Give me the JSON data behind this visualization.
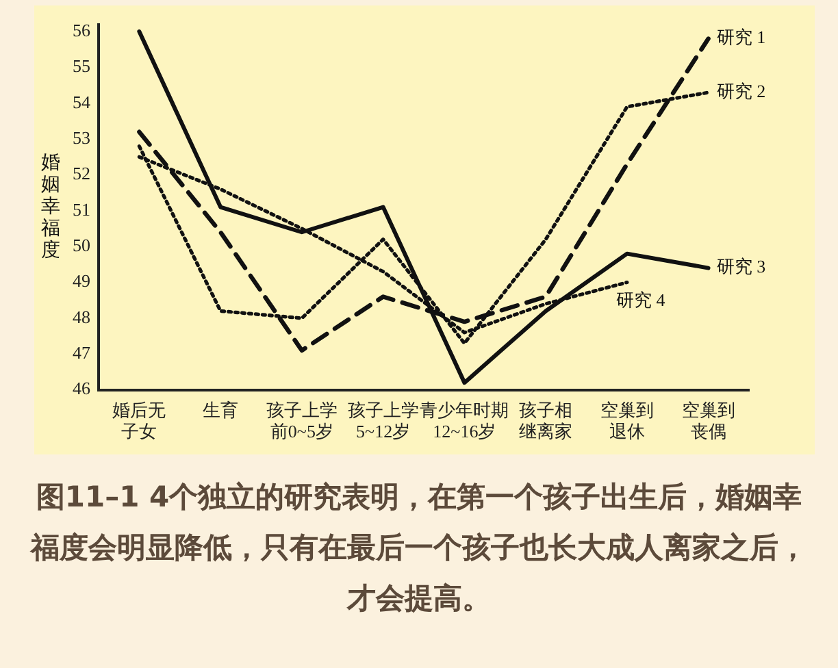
{
  "chart_data": {
    "type": "line",
    "ylabel": "婚姻幸福度",
    "categories": [
      "婚后无子女",
      "生育",
      "孩子上学前0~5岁",
      "孩子上学5~12岁",
      "青少年时期12~16岁",
      "孩子相继离家",
      "空巢到退休",
      "空巢到丧偶"
    ],
    "series": [
      {
        "name": "研究 1",
        "color": "#111111",
        "line_style": "dashed",
        "values": [
          53.2,
          50.4,
          47.1,
          48.6,
          47.9,
          48.6,
          52.3,
          55.8
        ]
      },
      {
        "name": "研究 2",
        "color": "#111111",
        "line_style": "dotted",
        "values": [
          52.8,
          48.2,
          48.0,
          50.2,
          47.3,
          50.2,
          53.9,
          54.3
        ]
      },
      {
        "name": "研究 3",
        "color": "#111111",
        "line_style": "solid",
        "values": [
          56.0,
          51.1,
          50.4,
          51.1,
          46.2,
          48.2,
          49.8,
          49.4
        ]
      },
      {
        "name": "研究 4",
        "color": "#111111",
        "line_style": "dotted",
        "values": [
          52.5,
          51.6,
          50.5,
          49.3,
          47.6,
          48.4,
          49.0,
          null
        ]
      }
    ],
    "ylim": [
      46,
      56.2
    ],
    "yticks": [
      46,
      47,
      48,
      49,
      50,
      51,
      52,
      53,
      54,
      55,
      56
    ],
    "grid": false,
    "legend": false,
    "marker": "none",
    "annotations": [
      "图11–1 4个独立的研究表明，在第一个孩子出生后，婚姻幸福度会明显降低，只有在最后一个孩子也长大成人离家之后，才会提高。"
    ]
  }
}
